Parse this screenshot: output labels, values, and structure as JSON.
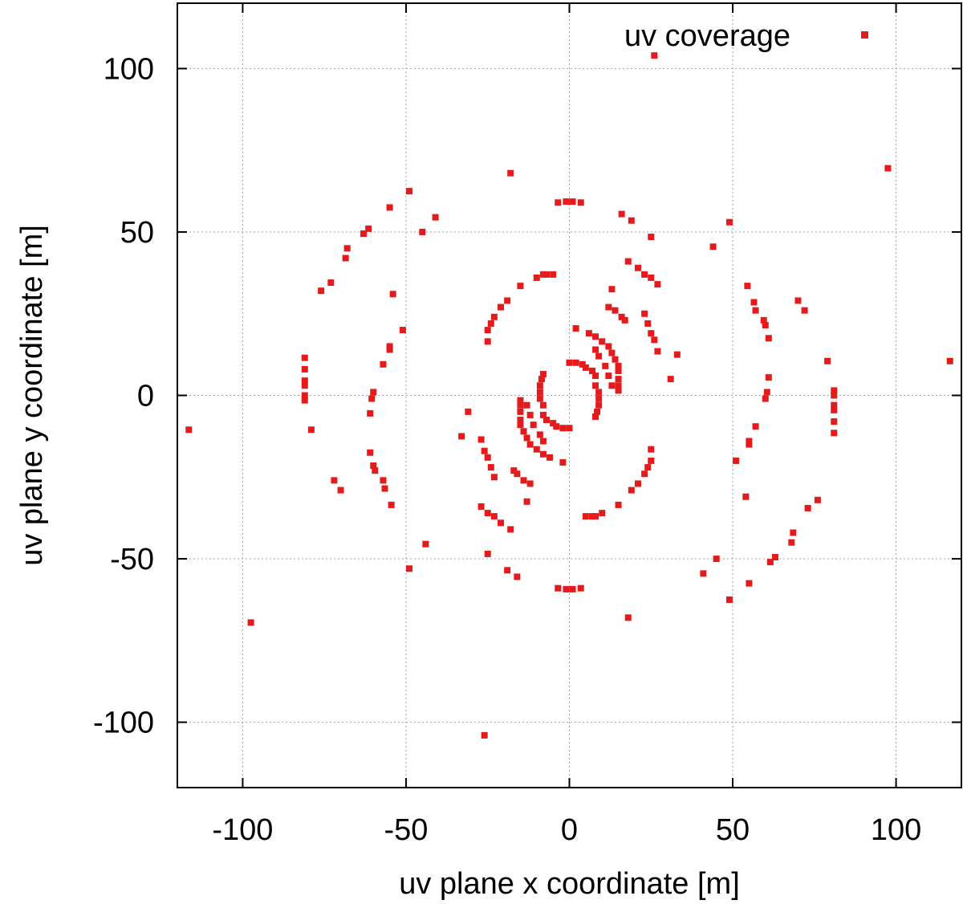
{
  "chart_data": {
    "type": "scatter",
    "xlabel": "uv plane x coordinate [m]",
    "ylabel": "uv plane y coordinate [m]",
    "xlim": [
      -120,
      120
    ],
    "ylim": [
      -120,
      120
    ],
    "xticks": [
      -100,
      -50,
      0,
      50,
      100
    ],
    "yticks": [
      -100,
      -50,
      0,
      50,
      100
    ],
    "xtick_labels": [
      "-100",
      "-50",
      "0",
      "50",
      "100"
    ],
    "ytick_labels": [
      "-100",
      "-50",
      "0",
      "50",
      "100"
    ],
    "grid": true,
    "legend_position": "top-right",
    "marker_color": "#e41a1c",
    "series": [
      {
        "name": "uv coverage",
        "points": [
          [
            26,
            104
          ],
          [
            -26,
            -104
          ],
          [
            97.5,
            69.5
          ],
          [
            -97.5,
            -69.5
          ],
          [
            116.5,
            10.5
          ],
          [
            -116.5,
            -10.5
          ],
          [
            -18,
            68
          ],
          [
            18,
            -68
          ],
          [
            49,
            53
          ],
          [
            -49,
            -53
          ],
          [
            44,
            45.5
          ],
          [
            -44,
            -45.5
          ],
          [
            -49,
            62.5
          ],
          [
            49,
            -62.5
          ],
          [
            -45,
            50
          ],
          [
            45,
            -50
          ],
          [
            -41,
            54.5
          ],
          [
            41,
            -54.5
          ],
          [
            -55,
            57.5
          ],
          [
            55,
            -57.5
          ],
          [
            -3.5,
            59
          ],
          [
            -1,
            59.3
          ],
          [
            1,
            59.3
          ],
          [
            3.5,
            59
          ],
          [
            3.5,
            -59
          ],
          [
            1,
            -59.3
          ],
          [
            -1,
            -59.3
          ],
          [
            -3.5,
            -59
          ],
          [
            -61.5,
            51
          ],
          [
            -63,
            49.5
          ],
          [
            -68,
            45
          ],
          [
            -68.5,
            42
          ],
          [
            61.5,
            -51
          ],
          [
            63,
            -49.5
          ],
          [
            68,
            -45
          ],
          [
            68.5,
            -42
          ],
          [
            -73,
            34.5
          ],
          [
            -76,
            32
          ],
          [
            73,
            -34.5
          ],
          [
            76,
            -32
          ],
          [
            -81,
            11.5
          ],
          [
            -81,
            8
          ],
          [
            -81,
            4.5
          ],
          [
            -81,
            3
          ],
          [
            -81,
            0
          ],
          [
            -81,
            -1.5
          ],
          [
            -79,
            -10.5
          ],
          [
            81,
            -11.5
          ],
          [
            81,
            -8
          ],
          [
            81,
            -4.5
          ],
          [
            81,
            -3
          ],
          [
            81,
            0
          ],
          [
            81,
            1.5
          ],
          [
            79,
            10.5
          ],
          [
            -72,
            -26
          ],
          [
            -70,
            -29
          ],
          [
            72,
            26
          ],
          [
            70,
            29
          ],
          [
            -54,
            31
          ],
          [
            54,
            -31
          ],
          [
            -51,
            20
          ],
          [
            51,
            -20
          ],
          [
            -55,
            15
          ],
          [
            -55,
            14
          ],
          [
            -57,
            9.5
          ],
          [
            55,
            -15
          ],
          [
            55,
            -14
          ],
          [
            57,
            -9.5
          ],
          [
            -60,
            1
          ],
          [
            -60.5,
            -1
          ],
          [
            -61,
            -5.5
          ],
          [
            60,
            -1
          ],
          [
            60.5,
            1
          ],
          [
            61,
            5.5
          ],
          [
            -61,
            -17.5
          ],
          [
            -60,
            -21.5
          ],
          [
            -59.5,
            -23
          ],
          [
            61,
            17.5
          ],
          [
            60,
            21.5
          ],
          [
            59.5,
            23
          ],
          [
            -57,
            -26
          ],
          [
            -56.5,
            -28.5
          ],
          [
            -54.5,
            -33.5
          ],
          [
            57,
            26
          ],
          [
            56.5,
            28.5
          ],
          [
            54.5,
            33.5
          ],
          [
            16,
            55.5
          ],
          [
            19,
            53.5
          ],
          [
            25,
            48.5
          ],
          [
            -16,
            -55.5
          ],
          [
            -19,
            -53.5
          ],
          [
            -25,
            -48.5
          ],
          [
            18,
            41
          ],
          [
            21,
            39
          ],
          [
            23,
            37
          ],
          [
            25,
            36
          ],
          [
            27,
            34
          ],
          [
            -18,
            -41
          ],
          [
            -21,
            -39
          ],
          [
            -23,
            -37
          ],
          [
            -25,
            -36
          ],
          [
            -27,
            -34
          ],
          [
            13,
            32.5
          ],
          [
            -13,
            -32.5
          ],
          [
            12,
            27
          ],
          [
            14,
            26
          ],
          [
            16,
            24
          ],
          [
            17,
            23
          ],
          [
            -12,
            -27
          ],
          [
            -14,
            -26
          ],
          [
            -16,
            -24
          ],
          [
            -17,
            -23
          ],
          [
            23,
            25
          ],
          [
            24,
            22
          ],
          [
            25,
            19
          ],
          [
            26,
            17
          ],
          [
            27,
            13.5
          ],
          [
            -23,
            -25
          ],
          [
            -24,
            -22
          ],
          [
            -25,
            -19
          ],
          [
            -26,
            -17
          ],
          [
            -27,
            -13.5
          ],
          [
            33,
            12.5
          ],
          [
            -33,
            -12.5
          ],
          [
            31,
            5
          ],
          [
            -31,
            -5
          ],
          [
            -15,
            33.5
          ],
          [
            -10,
            36
          ],
          [
            -8,
            37
          ],
          [
            -7,
            37
          ],
          [
            -5,
            37
          ],
          [
            15,
            -33.5
          ],
          [
            10,
            -36
          ],
          [
            8,
            -37
          ],
          [
            7,
            -37
          ],
          [
            5,
            -37
          ],
          [
            -19,
            29
          ],
          [
            -21,
            27
          ],
          [
            -23,
            24
          ],
          [
            -24,
            22
          ],
          [
            -25,
            20
          ],
          [
            -25,
            16.5
          ],
          [
            19,
            -29
          ],
          [
            21,
            -27
          ],
          [
            23,
            -24
          ],
          [
            24,
            -22
          ],
          [
            25,
            -20
          ],
          [
            25,
            -16.5
          ],
          [
            2,
            20.5
          ],
          [
            6,
            19
          ],
          [
            8,
            18
          ],
          [
            10,
            16.5
          ],
          [
            12,
            15
          ],
          [
            13,
            13
          ],
          [
            14,
            11
          ],
          [
            15,
            9
          ],
          [
            15,
            7.5
          ],
          [
            15,
            5
          ],
          [
            15,
            3
          ],
          [
            15,
            1.5
          ],
          [
            -2,
            -20.5
          ],
          [
            -6,
            -19
          ],
          [
            -8,
            -18
          ],
          [
            -10,
            -16.5
          ],
          [
            -12,
            -15
          ],
          [
            -13,
            -13
          ],
          [
            -14,
            -11
          ],
          [
            -15,
            -9
          ],
          [
            -15,
            -7.5
          ],
          [
            -15,
            -5
          ],
          [
            -15,
            -3
          ],
          [
            -15,
            -1.5
          ],
          [
            8,
            14
          ],
          [
            9,
            12
          ],
          [
            11,
            9
          ],
          [
            12,
            6
          ],
          [
            13,
            3
          ],
          [
            -8,
            -14
          ],
          [
            -9,
            -12
          ],
          [
            -11,
            -9
          ],
          [
            -12,
            -6
          ],
          [
            -13,
            -3
          ],
          [
            0,
            10
          ],
          [
            2,
            10
          ],
          [
            4,
            9.5
          ],
          [
            5,
            8.5
          ],
          [
            7,
            7.5
          ],
          [
            8,
            6
          ],
          [
            0,
            -10
          ],
          [
            -2,
            -10
          ],
          [
            -4,
            -9.5
          ],
          [
            -5,
            -8.5
          ],
          [
            -7,
            -7.5
          ],
          [
            -8,
            -6
          ],
          [
            8,
            3
          ],
          [
            9,
            1
          ],
          [
            9,
            -1
          ],
          [
            9,
            -3
          ],
          [
            8.5,
            -5
          ],
          [
            8,
            -6.5
          ],
          [
            -8,
            -3
          ],
          [
            -9,
            -1
          ],
          [
            -9,
            1
          ],
          [
            -9,
            3
          ],
          [
            -8.5,
            5
          ],
          [
            -8,
            6.5
          ]
        ]
      }
    ]
  }
}
